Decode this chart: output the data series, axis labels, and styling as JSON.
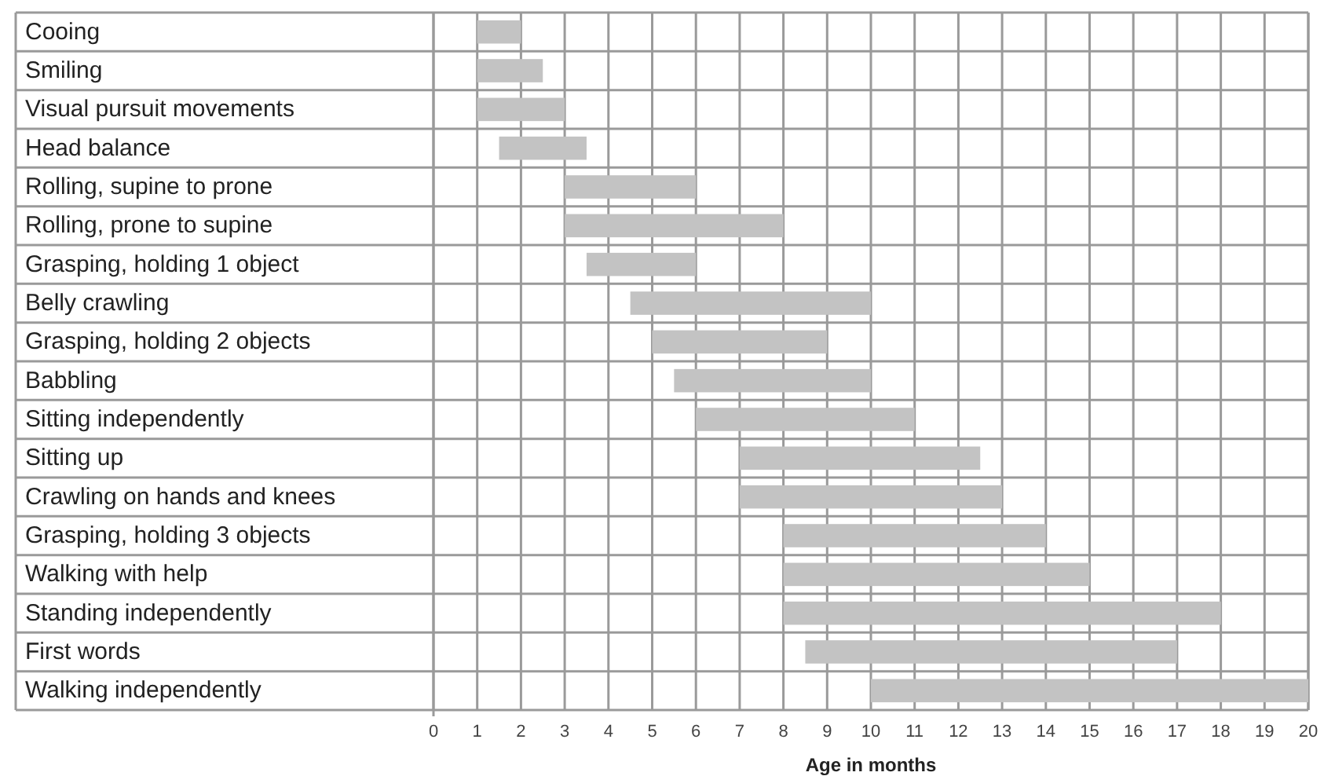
{
  "chart_data": {
    "type": "bar",
    "orientation": "horizontal",
    "xlabel": "Age in months",
    "categories": [
      "Cooing",
      "Smiling",
      "Visual pursuit movements",
      "Head balance",
      "Rolling, supine to prone",
      "Rolling, prone to supine",
      "Grasping, holding 1 object",
      "Belly crawling",
      "Grasping, holding 2 objects",
      "Babbling",
      "Sitting independently",
      "Sitting up",
      "Crawling on hands and knees",
      "Grasping, holding 3 objects",
      "Walking with help",
      "Standing independently",
      "First words",
      "Walking independently"
    ],
    "base": [
      1,
      1,
      1,
      1.5,
      3,
      3,
      3.5,
      4.5,
      5,
      5.5,
      6,
      7,
      7,
      8,
      8,
      8,
      8.5,
      10
    ],
    "values": [
      1,
      1.5,
      2,
      2,
      3,
      5,
      2.5,
      5.5,
      4,
      4.5,
      5,
      5.5,
      6,
      6,
      7,
      10,
      8.5,
      10
    ],
    "color": "#c3c3c3",
    "xlim": [
      0,
      20
    ],
    "xticks": [
      0,
      1,
      2,
      3,
      4,
      5,
      6,
      7,
      8,
      9,
      10,
      11,
      12,
      13,
      14,
      15,
      16,
      17,
      18,
      19,
      20
    ],
    "grid": true
  }
}
